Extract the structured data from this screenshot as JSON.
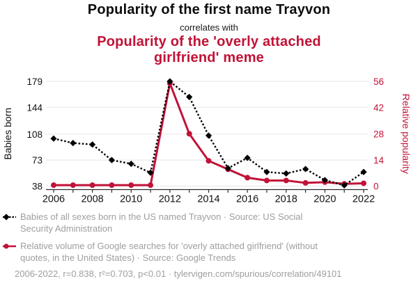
{
  "chart_data": {
    "type": "line",
    "title_top": "Popularity of the first name Trayvon",
    "connector": "correlates with",
    "title_bottom": "Popularity of the 'overly attached girlfriend' meme",
    "x": [
      2006,
      2007,
      2008,
      2009,
      2010,
      2011,
      2012,
      2013,
      2014,
      2015,
      2016,
      2017,
      2018,
      2019,
      2020,
      2021,
      2022
    ],
    "xlim": [
      2006,
      2022
    ],
    "xtick_label_every": 2,
    "ylabel_left": "Babies born",
    "ylabel_right": "Relative popularity",
    "yticks_left": [
      38,
      73,
      108,
      144,
      179
    ],
    "yticks_right": [
      0,
      14,
      28,
      42,
      56
    ],
    "ylim_left": [
      38,
      179
    ],
    "ylim_right": [
      0,
      56
    ],
    "grid": "horizontal-light",
    "series": [
      {
        "name": "Babies of all sexes born in the US named Trayvon",
        "axis": "left",
        "color": "#000000",
        "line_style": "dotted",
        "marker": "diamond",
        "values": [
          102,
          96,
          94,
          73,
          68,
          56,
          179,
          158,
          106,
          62,
          76,
          57,
          55,
          61,
          46,
          39,
          57
        ]
      },
      {
        "name": "Relative volume of Google searches for 'overly attached girlfriend'",
        "axis": "right",
        "color": "#c11237",
        "line_style": "solid",
        "marker": "circle",
        "values": [
          0.5,
          0.5,
          0.5,
          0.5,
          0.5,
          0.5,
          55,
          28,
          13.5,
          9,
          4.5,
          3,
          3,
          1.7,
          2.1,
          1.2,
          1.5
        ]
      }
    ]
  },
  "legend": {
    "entries": [
      "Babies of all sexes born in the US named Trayvon · Source: US Social Security Administration",
      "Relative volume of Google searches for 'overly attached girlfriend' (without quotes, in the United States) · Source: Google Trends"
    ]
  },
  "footer": {
    "stats": "2006-2022, r=0.838, r²=0.703, p<0.01 · tylervigen.com/spurious/correlation/49101"
  },
  "colors": {
    "accent_red": "#c11237",
    "series_black": "#000000",
    "legend_gray": "#9e9e9e",
    "gridline": "#ebebeb",
    "axis": "#2b2b2b"
  }
}
